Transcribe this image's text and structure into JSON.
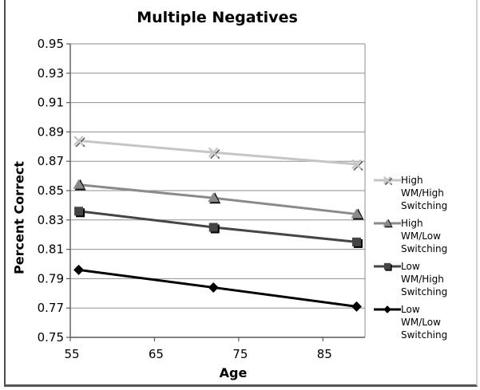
{
  "chart_data": {
    "type": "line",
    "title": "Multiple Negatives",
    "xlabel": "Age",
    "ylabel": "Percent Correct",
    "grid": "horizontal",
    "legend_position": "right",
    "x": [
      56,
      72,
      89
    ],
    "xlim": [
      55,
      90
    ],
    "x_ticks": [
      "55",
      "65",
      "75",
      "85"
    ],
    "ylim": [
      0.75,
      0.95
    ],
    "y_ticks": [
      "0.95",
      "0.93",
      "0.91",
      "0.89",
      "0.87",
      "0.85",
      "0.83",
      "0.81",
      "0.79",
      "0.77",
      "0.75"
    ],
    "series": [
      {
        "name": "High WM/High Switching",
        "values": [
          0.884,
          0.876,
          0.868
        ],
        "color": "#c5c5c5",
        "shadow": "#5a5a5a",
        "marker": "x"
      },
      {
        "name": "High WM/Low Switching",
        "values": [
          0.854,
          0.845,
          0.834
        ],
        "color": "#8a8a8a",
        "shadow": "#111111",
        "marker": "triangle"
      },
      {
        "name": "Low WM/High Switching",
        "values": [
          0.836,
          0.825,
          0.815
        ],
        "color": "#454545",
        "shadow": "#000000",
        "marker": "square"
      },
      {
        "name": "Low WM/Low Switching",
        "values": [
          0.796,
          0.784,
          0.771
        ],
        "color": "#000000",
        "shadow": "#000000",
        "marker": "diamond"
      }
    ],
    "colors": {
      "gridline": "#8f8f8f",
      "axis": "#595959",
      "text": "#000000",
      "background": "#ffffff"
    }
  }
}
